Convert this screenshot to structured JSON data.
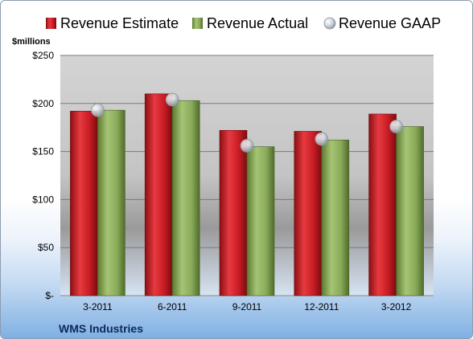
{
  "chart_data": {
    "type": "bar",
    "categories": [
      "3-2011",
      "6-2011",
      "9-2011",
      "12-2011",
      "3-2012"
    ],
    "series": [
      {
        "name": "Revenue Estimate",
        "kind": "bar",
        "color": "#d0202a",
        "values": [
          192,
          210,
          172,
          171,
          189
        ]
      },
      {
        "name": "Revenue Actual",
        "kind": "bar",
        "color": "#8aac5a",
        "values": [
          193,
          203,
          155,
          162,
          176
        ]
      },
      {
        "name": "Revenue GAAP",
        "kind": "marker",
        "color": "#b8c2cc",
        "values": [
          193,
          204,
          156,
          163,
          176
        ]
      }
    ],
    "ylabel": "$millions",
    "ylim": [
      0,
      250
    ],
    "yticks": [
      0,
      50,
      100,
      150,
      200,
      250
    ],
    "ytick_labels": [
      "$-",
      "$50",
      "$100",
      "$150",
      "$200",
      "$250"
    ],
    "grid": true,
    "legend_position": "top",
    "footer": "WMS Industries"
  }
}
